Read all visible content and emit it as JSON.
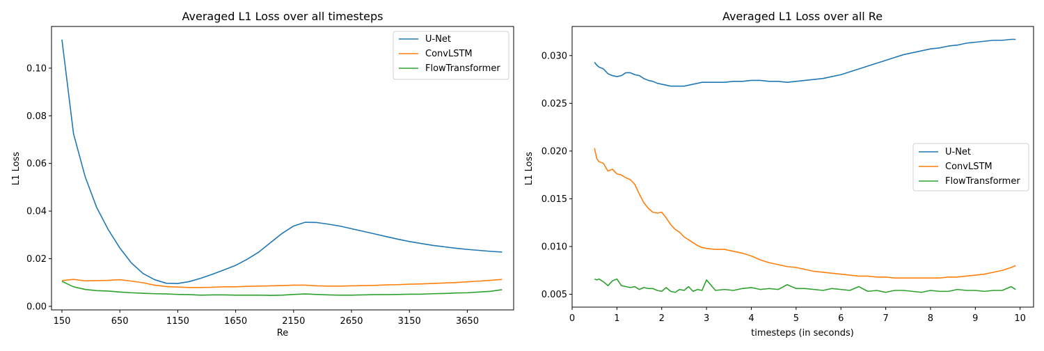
{
  "chart_data": [
    {
      "type": "line",
      "title": "Averaged L1 Loss over all timesteps",
      "xlabel": "Re",
      "ylabel": "L1 Loss",
      "xlim": [
        60,
        4050
      ],
      "ylim": [
        -0.0015,
        0.1175
      ],
      "xticks": [
        150,
        650,
        1150,
        1650,
        2150,
        2650,
        3150,
        3650
      ],
      "xtick_labels": [
        "150",
        "650",
        "1150",
        "1650",
        "2150",
        "2650",
        "3150",
        "3650"
      ],
      "yticks": [
        0.0,
        0.02,
        0.04,
        0.06,
        0.08,
        0.1
      ],
      "ytick_labels": [
        "0.00",
        "0.02",
        "0.04",
        "0.06",
        "0.08",
        "0.10"
      ],
      "legend_position": "top-right",
      "grid": false,
      "x": [
        150,
        250,
        350,
        450,
        550,
        650,
        750,
        850,
        950,
        1050,
        1150,
        1250,
        1350,
        1450,
        1550,
        1650,
        1750,
        1850,
        1950,
        2050,
        2150,
        2250,
        2350,
        2450,
        2550,
        2650,
        2750,
        2850,
        2950,
        3050,
        3150,
        3250,
        3350,
        3450,
        3550,
        3650,
        3750,
        3850,
        3950
      ],
      "series": [
        {
          "name": "U-Net",
          "color": "#1f77b4",
          "values": [
            0.112,
            0.0725,
            0.0545,
            0.0415,
            0.0322,
            0.0245,
            0.0182,
            0.0138,
            0.0112,
            0.0097,
            0.0096,
            0.0104,
            0.0118,
            0.0135,
            0.0153,
            0.0172,
            0.0198,
            0.0228,
            0.0267,
            0.0306,
            0.0337,
            0.0353,
            0.0352,
            0.0345,
            0.0337,
            0.0326,
            0.0315,
            0.0304,
            0.0293,
            0.0282,
            0.0272,
            0.0264,
            0.0256,
            0.025,
            0.0244,
            0.0239,
            0.0235,
            0.0231,
            0.0228
          ]
        },
        {
          "name": "ConvLSTM",
          "color": "#ff7f0e",
          "values": [
            0.0108,
            0.0113,
            0.0107,
            0.0108,
            0.0109,
            0.0112,
            0.0106,
            0.0099,
            0.0089,
            0.0083,
            0.0081,
            0.0079,
            0.0079,
            0.008,
            0.0082,
            0.0082,
            0.0084,
            0.0085,
            0.0086,
            0.0087,
            0.0089,
            0.0089,
            0.0086,
            0.0085,
            0.0085,
            0.0086,
            0.0087,
            0.0088,
            0.009,
            0.0091,
            0.0093,
            0.0094,
            0.0096,
            0.0098,
            0.01,
            0.0103,
            0.0106,
            0.0109,
            0.0113
          ]
        },
        {
          "name": "FlowTransformer",
          "color": "#2ca02c",
          "values": [
            0.0105,
            0.0082,
            0.0071,
            0.0066,
            0.0064,
            0.006,
            0.0057,
            0.0055,
            0.0053,
            0.0052,
            0.005,
            0.0049,
            0.0047,
            0.0048,
            0.0048,
            0.0047,
            0.0047,
            0.0047,
            0.0046,
            0.0047,
            0.005,
            0.0052,
            0.005,
            0.0048,
            0.0047,
            0.0047,
            0.0048,
            0.0049,
            0.0049,
            0.005,
            0.0051,
            0.0051,
            0.0053,
            0.0054,
            0.0056,
            0.0057,
            0.006,
            0.0063,
            0.007
          ]
        }
      ]
    },
    {
      "type": "line",
      "title": "Averaged L1 Loss over all Re",
      "xlabel": "timesteps (in seconds)",
      "ylabel": "L1 Loss",
      "xlim": [
        0,
        10.3
      ],
      "ylim": [
        0.00365,
        0.03305
      ],
      "xticks": [
        0,
        1,
        2,
        3,
        4,
        5,
        6,
        7,
        8,
        9,
        10
      ],
      "xtick_labels": [
        "0",
        "1",
        "2",
        "3",
        "4",
        "5",
        "6",
        "7",
        "8",
        "9",
        "10"
      ],
      "yticks": [
        0.005,
        0.01,
        0.015,
        0.02,
        0.025,
        0.03
      ],
      "ytick_labels": [
        "0.005",
        "0.010",
        "0.015",
        "0.020",
        "0.025",
        "0.030"
      ],
      "legend_position": "center-right",
      "grid": false,
      "x": [
        0.5,
        0.55,
        0.6,
        0.7,
        0.8,
        0.9,
        1.0,
        1.1,
        1.2,
        1.3,
        1.4,
        1.5,
        1.6,
        1.7,
        1.8,
        1.9,
        2.0,
        2.1,
        2.2,
        2.3,
        2.4,
        2.5,
        2.6,
        2.7,
        2.8,
        2.9,
        3.0,
        3.2,
        3.4,
        3.6,
        3.8,
        4.0,
        4.2,
        4.4,
        4.6,
        4.8,
        5.0,
        5.2,
        5.4,
        5.6,
        5.8,
        6.0,
        6.2,
        6.4,
        6.6,
        6.8,
        7.0,
        7.2,
        7.4,
        7.6,
        7.8,
        8.0,
        8.2,
        8.4,
        8.6,
        8.8,
        9.0,
        9.2,
        9.4,
        9.6,
        9.8,
        9.9
      ],
      "series": [
        {
          "name": "U-Net",
          "color": "#1f77b4",
          "values": [
            0.0293,
            0.029,
            0.0288,
            0.0286,
            0.0281,
            0.0279,
            0.0278,
            0.0279,
            0.0282,
            0.0282,
            0.028,
            0.0279,
            0.0276,
            0.0274,
            0.0273,
            0.0271,
            0.027,
            0.0269,
            0.0268,
            0.0268,
            0.0268,
            0.0268,
            0.0269,
            0.027,
            0.0271,
            0.0272,
            0.0272,
            0.0272,
            0.0272,
            0.0273,
            0.0273,
            0.0274,
            0.0274,
            0.0273,
            0.0273,
            0.0272,
            0.0273,
            0.0274,
            0.0275,
            0.0276,
            0.0278,
            0.028,
            0.0283,
            0.0286,
            0.0289,
            0.0292,
            0.0295,
            0.0298,
            0.0301,
            0.0303,
            0.0305,
            0.0307,
            0.0308,
            0.031,
            0.0311,
            0.0313,
            0.0314,
            0.0315,
            0.0316,
            0.0316,
            0.0317,
            0.0317
          ]
        },
        {
          "name": "ConvLSTM",
          "color": "#ff7f0e",
          "values": [
            0.0203,
            0.0192,
            0.0189,
            0.0187,
            0.0179,
            0.0181,
            0.0176,
            0.0175,
            0.0172,
            0.017,
            0.0165,
            0.0155,
            0.0146,
            0.014,
            0.0136,
            0.0135,
            0.0136,
            0.013,
            0.0123,
            0.0118,
            0.0115,
            0.011,
            0.0107,
            0.0104,
            0.0101,
            0.0099,
            0.0098,
            0.0097,
            0.0097,
            0.0095,
            0.0093,
            0.009,
            0.0086,
            0.0083,
            0.0081,
            0.0079,
            0.0078,
            0.0076,
            0.0074,
            0.0073,
            0.0072,
            0.0071,
            0.007,
            0.0069,
            0.0069,
            0.0068,
            0.0068,
            0.0067,
            0.0067,
            0.0067,
            0.0067,
            0.0067,
            0.0067,
            0.0068,
            0.0068,
            0.0069,
            0.007,
            0.0071,
            0.0073,
            0.0075,
            0.0078,
            0.008
          ]
        },
        {
          "name": "FlowTransformer",
          "color": "#2ca02c",
          "values": [
            0.0066,
            0.0065,
            0.0066,
            0.0063,
            0.0059,
            0.0064,
            0.0066,
            0.0059,
            0.0058,
            0.0057,
            0.0058,
            0.0055,
            0.0057,
            0.0056,
            0.0056,
            0.0054,
            0.0053,
            0.0057,
            0.0053,
            0.0052,
            0.0055,
            0.0054,
            0.0058,
            0.0053,
            0.0055,
            0.0054,
            0.0065,
            0.0054,
            0.0055,
            0.0054,
            0.0056,
            0.0057,
            0.0055,
            0.0056,
            0.0055,
            0.006,
            0.0056,
            0.0056,
            0.0055,
            0.0054,
            0.0056,
            0.0055,
            0.0054,
            0.0058,
            0.0053,
            0.0054,
            0.0052,
            0.0054,
            0.0054,
            0.0053,
            0.0052,
            0.0054,
            0.0053,
            0.0053,
            0.0055,
            0.0054,
            0.0054,
            0.0053,
            0.0054,
            0.0054,
            0.0058,
            0.0055
          ]
        }
      ]
    }
  ]
}
